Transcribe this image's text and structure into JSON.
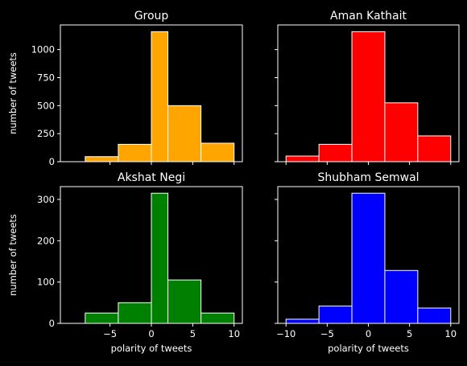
{
  "chart_data": [
    {
      "type": "bar",
      "title": "Group",
      "ylabel": "number of tweets",
      "xlabel": "",
      "color": "#ffa500",
      "bin_edges": [
        -8,
        -4,
        0,
        2,
        6,
        10
      ],
      "values": [
        45,
        155,
        1160,
        500,
        165
      ],
      "ylim": [
        0,
        1220
      ],
      "yticks": [
        "0",
        "250",
        "500",
        "750",
        "1000"
      ],
      "xticks": []
    },
    {
      "type": "bar",
      "title": "Aman Kathait",
      "ylabel": "",
      "xlabel": "",
      "color": "#ff0000",
      "bin_edges": [
        -10,
        -6,
        -2,
        2,
        6,
        10
      ],
      "values": [
        50,
        155,
        1160,
        525,
        230
      ],
      "ylim": [
        0,
        1220
      ],
      "yticks": [],
      "xticks": []
    },
    {
      "type": "bar",
      "title": "Akshat Negi",
      "ylabel": "number of tweets",
      "xlabel": "polarity of tweets",
      "color": "#008000",
      "bin_edges": [
        -8,
        -4,
        0,
        2,
        6,
        10
      ],
      "values": [
        25,
        50,
        315,
        105,
        25
      ],
      "ylim": [
        0,
        331
      ],
      "yticks": [
        "0",
        "100",
        "200",
        "300"
      ],
      "xticks": [
        "−5",
        "0",
        "5",
        "10"
      ]
    },
    {
      "type": "bar",
      "title": "Shubham Semwal",
      "ylabel": "",
      "xlabel": "polarity of tweets",
      "color": "#0000ff",
      "bin_edges": [
        -10,
        -6,
        -2,
        2,
        6,
        10
      ],
      "values": [
        10,
        42,
        315,
        128,
        37
      ],
      "ylim": [
        0,
        331
      ],
      "yticks": [],
      "xticks": [
        "−10",
        "−5",
        "0",
        "5",
        "10"
      ]
    }
  ]
}
